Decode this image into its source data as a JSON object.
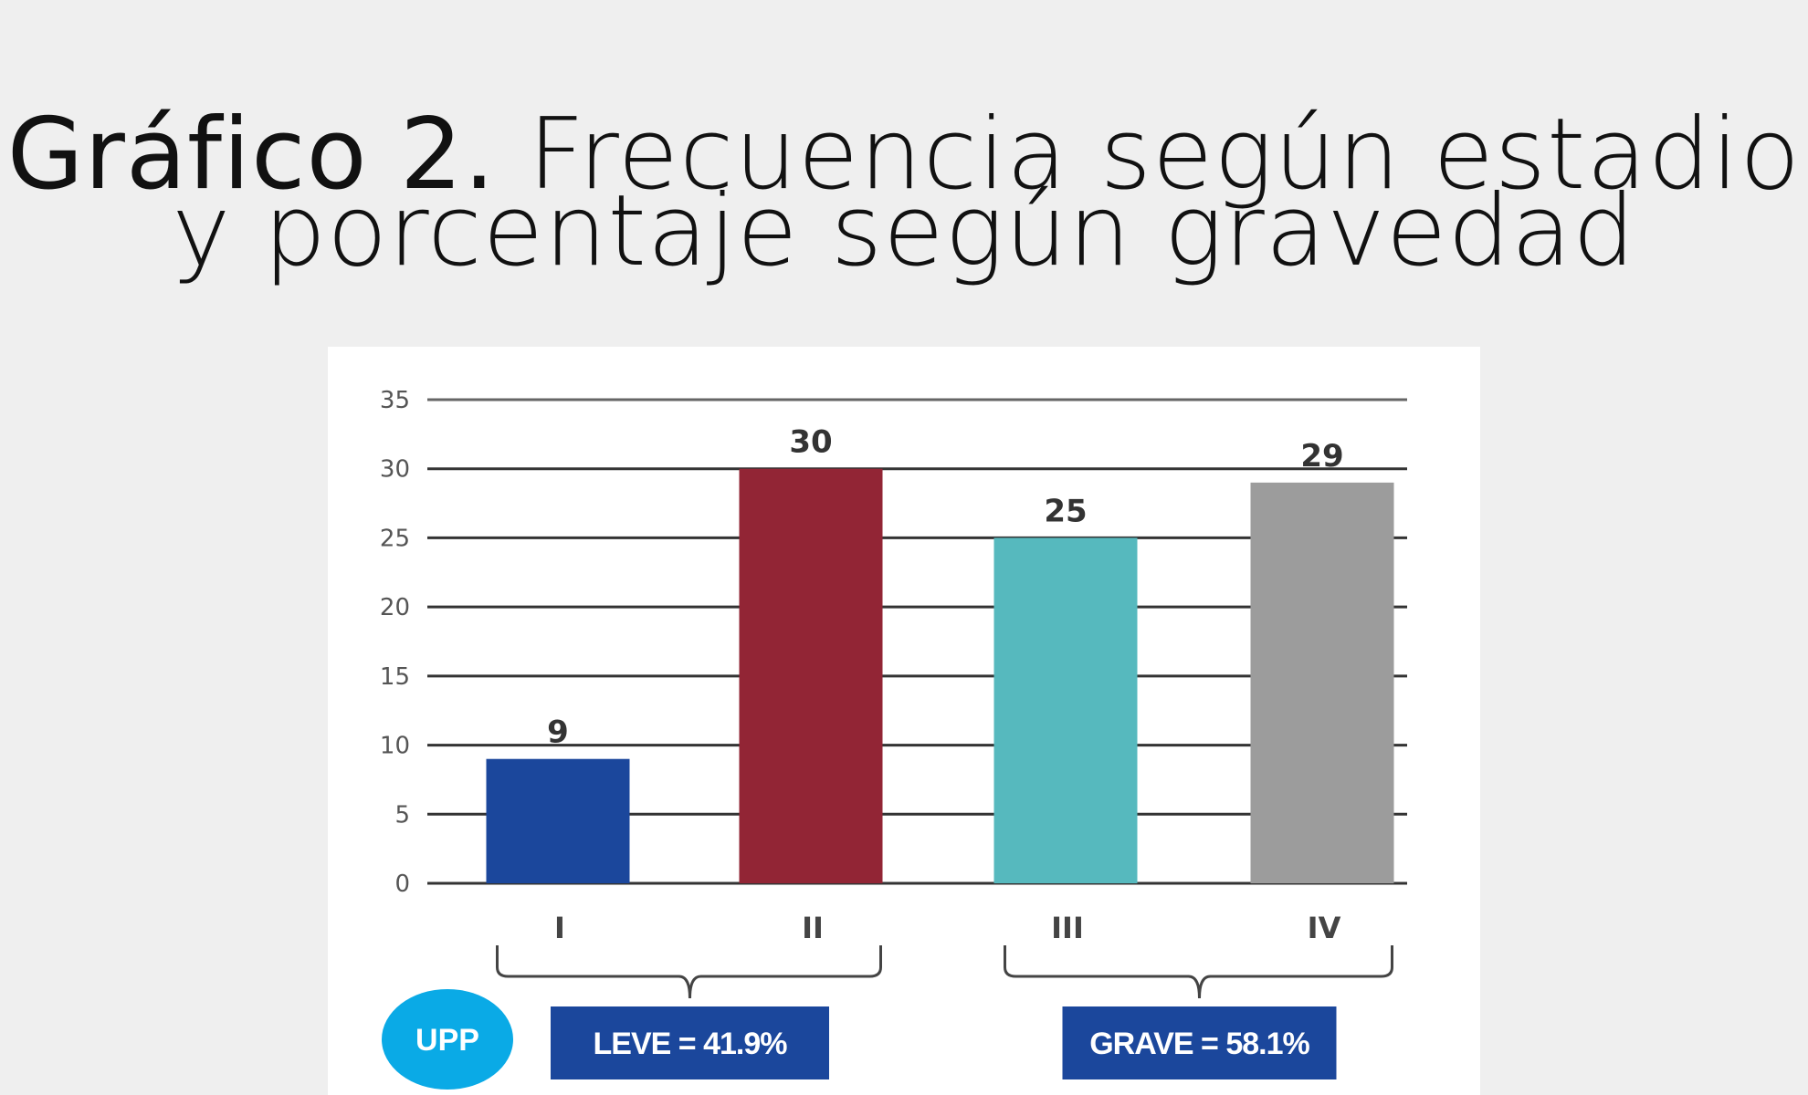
{
  "title": {
    "bold_part": "Gráfico 2.",
    "line1_rest": " Frecuencia según estadio",
    "line2": "y porcentaje según gravedad"
  },
  "chart_data": {
    "type": "bar",
    "categories": [
      "I",
      "II",
      "III",
      "IV"
    ],
    "values": [
      9,
      30,
      25,
      29
    ],
    "colors": [
      "#1b479c",
      "#922535",
      "#56b9be",
      "#9c9c9c"
    ],
    "ylim": [
      0,
      35
    ],
    "yticks": [
      0,
      5,
      10,
      15,
      20,
      25,
      30,
      35
    ],
    "xlabel": "",
    "ylabel": "",
    "grid": true,
    "groups": [
      {
        "label": "LEVE = 41.9%",
        "categories": [
          "I",
          "II"
        ],
        "color": "#1b479c"
      },
      {
        "label": "GRAVE = 58.1%",
        "categories": [
          "III",
          "IV"
        ],
        "color": "#1b479c"
      }
    ],
    "badge": {
      "label": "UPP",
      "color": "#0aaae6"
    }
  }
}
